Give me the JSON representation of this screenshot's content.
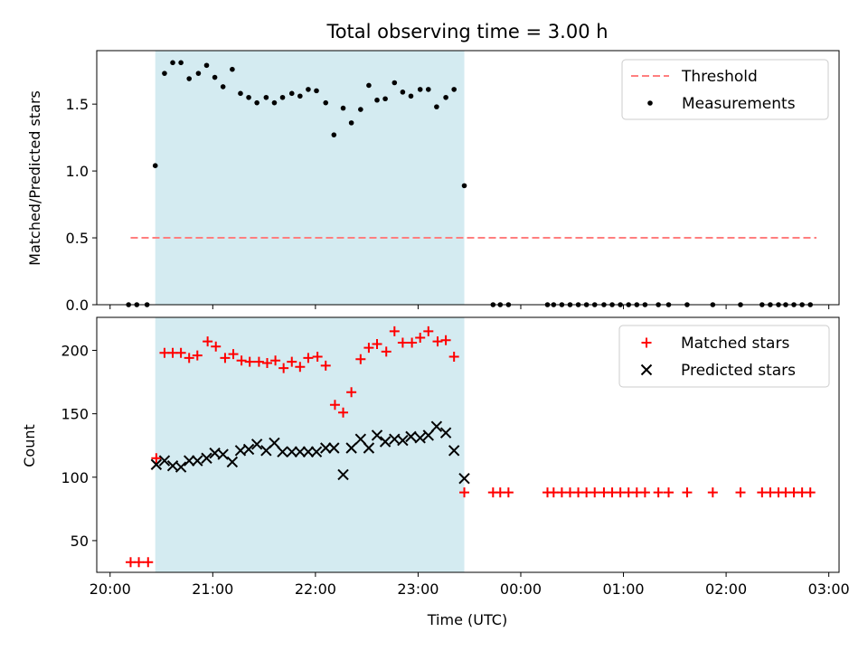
{
  "chart_data": {
    "title": "Total observing time = 3.00 h",
    "xlabel": "Time (UTC)",
    "x_unit": "hours",
    "xlim": [
      19.87,
      27.1
    ],
    "xticks": [
      {
        "v": 20,
        "label": "20:00"
      },
      {
        "v": 21,
        "label": "21:00"
      },
      {
        "v": 22,
        "label": "22:00"
      },
      {
        "v": 23,
        "label": "23:00"
      },
      {
        "v": 24,
        "label": "00:00"
      },
      {
        "v": 25,
        "label": "01:00"
      },
      {
        "v": 26,
        "label": "02:00"
      },
      {
        "v": 27,
        "label": "03:00"
      }
    ],
    "observing_window": [
      20.44,
      23.45
    ],
    "window_color": "#d4ebf1",
    "panels": [
      {
        "type": "scatter",
        "ylabel": "Matched/Predicted stars",
        "ylim": [
          0,
          1.9
        ],
        "yticks": [
          {
            "v": 0.0,
            "label": "0.0"
          },
          {
            "v": 0.5,
            "label": "0.5"
          },
          {
            "v": 1.0,
            "label": "1.0"
          },
          {
            "v": 1.5,
            "label": "1.5"
          }
        ],
        "legend": {
          "position": "upper right",
          "threshold": "Threshold",
          "measurements": "Measurements"
        },
        "threshold": {
          "y": 0.5,
          "x_range": [
            20.2,
            26.88
          ],
          "color": "#ff7f7f"
        },
        "measurements": {
          "x": [
            20.18,
            20.26,
            20.36,
            20.44,
            20.53,
            20.61,
            20.69,
            20.77,
            20.86,
            20.94,
            21.02,
            21.1,
            21.19,
            21.27,
            21.35,
            21.43,
            21.52,
            21.6,
            21.68,
            21.77,
            21.85,
            21.93,
            22.01,
            22.1,
            22.18,
            22.27,
            22.35,
            22.44,
            22.52,
            22.6,
            22.68,
            22.77,
            22.85,
            22.93,
            23.02,
            23.1,
            23.18,
            23.27,
            23.35,
            23.45,
            23.73,
            23.8,
            23.88,
            24.26,
            24.32,
            24.4,
            24.48,
            24.56,
            24.64,
            24.72,
            24.81,
            24.89,
            24.97,
            25.05,
            25.13,
            25.21,
            25.34,
            25.44,
            25.62,
            25.87,
            26.14,
            26.35,
            26.43,
            26.51,
            26.58,
            26.66,
            26.74,
            26.82
          ],
          "y": [
            0.0,
            0.0,
            0.0,
            1.04,
            1.73,
            1.81,
            1.81,
            1.69,
            1.73,
            1.79,
            1.7,
            1.63,
            1.76,
            1.58,
            1.55,
            1.51,
            1.55,
            1.51,
            1.55,
            1.58,
            1.56,
            1.61,
            1.6,
            1.51,
            1.27,
            1.47,
            1.36,
            1.46,
            1.64,
            1.53,
            1.54,
            1.66,
            1.59,
            1.56,
            1.61,
            1.61,
            1.48,
            1.55,
            1.61,
            0.89,
            0.0,
            0.0,
            0.0,
            0.0,
            0.0,
            0.0,
            0.0,
            0.0,
            0.0,
            0.0,
            0.0,
            0.0,
            0.0,
            0.0,
            0.0,
            0.0,
            0.0,
            0.0,
            0.0,
            0.0,
            0.0,
            0.0,
            0.0,
            0.0,
            0.0,
            0.0,
            0.0,
            0.0
          ]
        }
      },
      {
        "type": "scatter",
        "ylabel": "Count",
        "ylim": [
          25,
          226
        ],
        "yticks": [
          {
            "v": 50,
            "label": "50"
          },
          {
            "v": 100,
            "label": "100"
          },
          {
            "v": 150,
            "label": "150"
          },
          {
            "v": 200,
            "label": "200"
          }
        ],
        "legend": {
          "position": "upper right",
          "matched": "Matched stars",
          "predicted": "Predicted stars"
        },
        "matched": {
          "color": "#ff0000",
          "x": [
            20.2,
            20.28,
            20.37,
            20.45,
            20.53,
            20.61,
            20.69,
            20.77,
            20.85,
            20.95,
            21.03,
            21.12,
            21.2,
            21.28,
            21.36,
            21.45,
            21.53,
            21.61,
            21.69,
            21.77,
            21.85,
            21.93,
            22.02,
            22.1,
            22.19,
            22.27,
            22.35,
            22.44,
            22.52,
            22.6,
            22.69,
            22.77,
            22.85,
            22.94,
            23.02,
            23.1,
            23.19,
            23.27,
            23.35,
            23.45,
            23.73,
            23.8,
            23.88,
            24.26,
            24.32,
            24.4,
            24.48,
            24.56,
            24.64,
            24.72,
            24.81,
            24.89,
            24.97,
            25.05,
            25.13,
            25.21,
            25.34,
            25.44,
            25.62,
            25.87,
            26.14,
            26.35,
            26.43,
            26.51,
            26.58,
            26.66,
            26.74,
            26.82
          ],
          "y": [
            33,
            33,
            33,
            115,
            198,
            198,
            198,
            194,
            196,
            207,
            203,
            194,
            197,
            192,
            191,
            191,
            190,
            192,
            186,
            191,
            187,
            194,
            195,
            188,
            157,
            151,
            167,
            193,
            202,
            205,
            199,
            215,
            206,
            206,
            210,
            215,
            207,
            208,
            195,
            88,
            88,
            88,
            88,
            88,
            88,
            88,
            88,
            88,
            88,
            88,
            88,
            88,
            88,
            88,
            88,
            88,
            88,
            88,
            88,
            88,
            88,
            88,
            88,
            88,
            88,
            88,
            88,
            88
          ]
        },
        "predicted": {
          "color": "#000000",
          "x": [
            20.45,
            20.53,
            20.61,
            20.69,
            20.77,
            20.85,
            20.94,
            21.02,
            21.1,
            21.19,
            21.27,
            21.35,
            21.43,
            21.52,
            21.6,
            21.68,
            21.77,
            21.85,
            21.93,
            22.01,
            22.1,
            22.18,
            22.27,
            22.35,
            22.44,
            22.52,
            22.6,
            22.68,
            22.77,
            22.85,
            22.93,
            23.02,
            23.1,
            23.18,
            23.27,
            23.35,
            23.45
          ],
          "y": [
            110,
            113,
            109,
            108,
            113,
            113,
            115,
            119,
            118,
            112,
            121,
            122,
            126,
            121,
            127,
            120,
            120,
            120,
            120,
            120,
            123,
            123,
            102,
            123,
            130,
            123,
            133,
            128,
            130,
            129,
            132,
            131,
            133,
            140,
            135,
            121,
            99
          ]
        }
      }
    ]
  }
}
